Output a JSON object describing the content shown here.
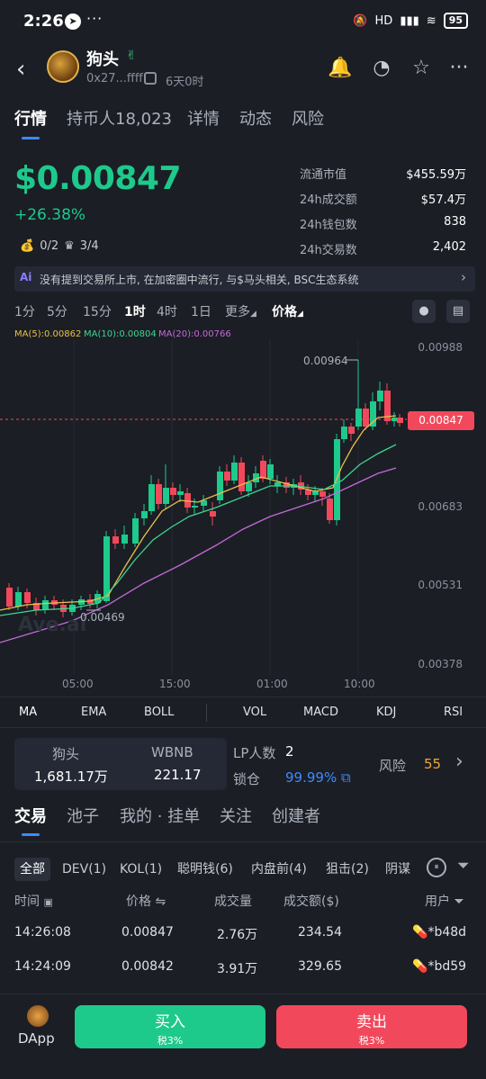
{
  "status_bar": {
    "time": "2:26",
    "dots": "···",
    "network": "HD",
    "battery": "95"
  },
  "header": {
    "token_name": "狗头",
    "address": "0x27...ffff",
    "age": "6天0时",
    "icons": [
      "back-icon",
      "bell-icon",
      "gauge-icon",
      "star-icon",
      "more-icon"
    ]
  },
  "tabs": [
    {
      "label": "行情",
      "active": true
    },
    {
      "label": "持币人18,023"
    },
    {
      "label": "详情"
    },
    {
      "label": "动态"
    },
    {
      "label": "风险"
    }
  ],
  "price": {
    "value": "$0.00847",
    "change": "+26.38%",
    "holders_chip": "0/2",
    "crown_chip": "3/4"
  },
  "stats": [
    {
      "label": "流通市值",
      "value": "$455.59万"
    },
    {
      "label": "24h成交额",
      "value": "$57.4万"
    },
    {
      "label": "24h钱包数",
      "value": "838"
    },
    {
      "label": "24h交易数",
      "value": "2,402"
    }
  ],
  "banner": {
    "badge": "Ai",
    "text": "没有提到交易所上市, 在加密圈中流行, 与$马头相关, BSC生态系统"
  },
  "intervals": [
    "1分",
    "5分",
    "15分",
    "1时",
    "4时",
    "1日",
    "更多",
    "价格"
  ],
  "active_interval": "1时",
  "ma_legend": {
    "ma5": "MA(5):0.00862",
    "ma10": "MA(10):0.00804",
    "ma20": "MA(20):0.00766"
  },
  "chart_data": {
    "type": "candlestick",
    "y_ticks": [
      "0.00988",
      "0.00683",
      "0.00531",
      "0.00378"
    ],
    "x_ticks": [
      "05:00",
      "15:00",
      "01:00",
      "10:00"
    ],
    "current_price": "0.00847",
    "annotations": [
      "0.00964",
      "0.00469"
    ],
    "watermark": "Ave.ai",
    "colors": {
      "up": "#1ec98c",
      "down": "#f2485b",
      "ma5": "#e7c14a",
      "ma10": "#3fd58f",
      "ma20": "#c46ad8"
    }
  },
  "indicators": [
    "MA",
    "EMA",
    "BOLL",
    "VOL",
    "MACD",
    "KDJ",
    "RSI"
  ],
  "pool": {
    "token_a": "狗头",
    "amount_a": "1,681.17万",
    "token_b": "WBNB",
    "amount_b": "221.17",
    "lp_label": "LP人数",
    "lp_count": "2",
    "lock_label": "锁仓",
    "lock_value": "99.99%",
    "risk_label": "风险",
    "risk_value": "55"
  },
  "trade_tabs": [
    "交易",
    "池子",
    "我的 · 挂单",
    "关注",
    "创建者"
  ],
  "filters": [
    "全部",
    "DEV(1)",
    "KOL(1)",
    "聪明钱(6)",
    "内盘前(4)",
    "狙击(2)",
    "阴谋"
  ],
  "table": {
    "headers": [
      "时间",
      "价格",
      "成交量",
      "成交额($)",
      "用户"
    ],
    "rows": [
      {
        "time": "14:26:08",
        "price": "0.00847",
        "volume": "2.76万",
        "amount": "234.54",
        "user": "*b48d"
      },
      {
        "time": "14:24:09",
        "price": "0.00842",
        "volume": "3.91万",
        "amount": "329.65",
        "user": "*bd59"
      }
    ]
  },
  "bottom": {
    "dapp": "DApp",
    "buy": "买入",
    "buy_tax": "税3%",
    "sell": "卖出",
    "sell_tax": "税3%"
  }
}
